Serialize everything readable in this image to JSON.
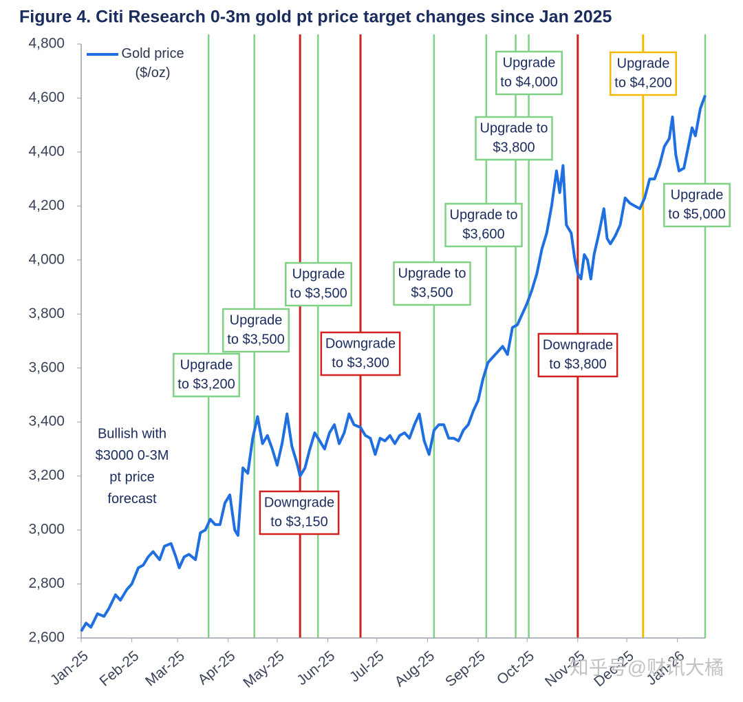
{
  "chart_data": {
    "type": "line",
    "title": "Figure 4. Citi Research 0-3m gold pt price target changes since Jan 2025",
    "x": [
      0,
      3,
      6,
      10,
      14,
      17,
      21,
      24,
      28,
      31,
      35,
      38,
      41,
      44,
      48,
      51,
      55,
      58,
      60,
      63,
      66,
      70,
      73,
      76,
      79,
      82,
      85,
      88,
      91,
      94,
      96,
      99,
      102,
      105,
      108,
      111,
      114,
      117,
      120,
      123,
      126,
      129,
      132,
      134,
      137,
      140,
      143,
      146,
      149,
      152,
      155,
      158,
      161,
      164,
      167,
      171,
      174,
      177,
      180,
      183,
      186,
      189,
      192,
      195,
      198,
      201,
      204,
      207,
      210,
      213,
      216,
      219,
      222,
      225,
      228,
      231,
      234,
      237,
      240,
      243,
      246,
      249,
      252,
      255,
      258,
      261,
      264,
      267,
      270,
      273,
      276,
      279,
      282,
      285,
      288,
      291,
      293,
      295,
      297,
      300,
      302,
      304,
      306,
      308,
      310,
      312,
      314,
      317,
      320,
      322,
      324,
      327,
      330,
      333,
      336,
      339,
      342,
      345,
      348,
      351,
      354,
      357,
      360,
      362,
      364,
      366,
      369,
      372,
      374,
      376,
      379,
      382
    ],
    "series": [
      {
        "name": "Gold price ($/oz)",
        "color": "#1f6fe0",
        "values": [
          2625,
          2655,
          2640,
          2690,
          2680,
          2710,
          2760,
          2740,
          2780,
          2800,
          2860,
          2870,
          2900,
          2920,
          2890,
          2940,
          2950,
          2900,
          2860,
          2900,
          2910,
          2890,
          2990,
          3000,
          3040,
          3020,
          3020,
          3100,
          3130,
          3000,
          2980,
          3230,
          3210,
          3340,
          3420,
          3320,
          3350,
          3300,
          3240,
          3320,
          3430,
          3310,
          3250,
          3200,
          3230,
          3300,
          3360,
          3330,
          3300,
          3360,
          3390,
          3320,
          3360,
          3430,
          3390,
          3380,
          3350,
          3340,
          3280,
          3340,
          3330,
          3350,
          3320,
          3350,
          3360,
          3340,
          3390,
          3430,
          3330,
          3280,
          3370,
          3390,
          3390,
          3340,
          3340,
          3330,
          3370,
          3390,
          3440,
          3480,
          3560,
          3620,
          3640,
          3660,
          3680,
          3650,
          3750,
          3760,
          3800,
          3840,
          3890,
          3950,
          4040,
          4100,
          4200,
          4330,
          4250,
          4350,
          4130,
          4100,
          4010,
          3950,
          3930,
          4020,
          4000,
          3930,
          4020,
          4100,
          4190,
          4080,
          4060,
          4090,
          4130,
          4230,
          4210,
          4200,
          4190,
          4230,
          4300,
          4300,
          4350,
          4420,
          4450,
          4530,
          4390,
          4330,
          4340,
          4430,
          4490,
          4460,
          4560,
          4610
        ]
      }
    ],
    "xlim": [
      0,
      382
    ],
    "ylim": [
      2600,
      4800
    ],
    "xticks": [
      {
        "value": 0,
        "label": "Jan-25"
      },
      {
        "value": 31,
        "label": "Feb-25"
      },
      {
        "value": 59,
        "label": "Mar-25"
      },
      {
        "value": 90,
        "label": "Apr-25"
      },
      {
        "value": 120,
        "label": "May-25"
      },
      {
        "value": 151,
        "label": "Jun-25"
      },
      {
        "value": 181,
        "label": "Jul-25"
      },
      {
        "value": 212,
        "label": "Aug-25"
      },
      {
        "value": 243,
        "label": "Sep-25"
      },
      {
        "value": 273,
        "label": "Oct-25"
      },
      {
        "value": 304,
        "label": "Nov-25"
      },
      {
        "value": 334,
        "label": "Dec-25"
      },
      {
        "value": 365,
        "label": "Jan-26"
      }
    ],
    "yticks": [
      {
        "value": 2600,
        "label": "2,600"
      },
      {
        "value": 2800,
        "label": "2,800"
      },
      {
        "value": 3000,
        "label": "3,000"
      },
      {
        "value": 3200,
        "label": "3,200"
      },
      {
        "value": 3400,
        "label": "3,400"
      },
      {
        "value": 3600,
        "label": "3,600"
      },
      {
        "value": 3800,
        "label": "3,800"
      },
      {
        "value": 4000,
        "label": "4,000"
      },
      {
        "value": 4200,
        "label": "4,200"
      },
      {
        "value": 4400,
        "label": "4,400"
      },
      {
        "value": 4600,
        "label": "4,600"
      },
      {
        "value": 4800,
        "label": "4,800"
      }
    ],
    "events": [
      {
        "x": 78,
        "color": "#7fd283",
        "label": [
          "Upgrade",
          "to $3,200"
        ]
      },
      {
        "x": 106,
        "color": "#7fd283",
        "label": [
          "Upgrade",
          "to $3,500"
        ]
      },
      {
        "x": 134,
        "color": "#d0211f",
        "label": [
          "Downgrade",
          "to $3,150"
        ]
      },
      {
        "x": 145,
        "color": "#7fd283",
        "label": [
          "Upgrade",
          "to $3,500"
        ]
      },
      {
        "x": 171,
        "color": "#d0211f",
        "label": [
          "Downgrade",
          "to $3,300"
        ]
      },
      {
        "x": 216,
        "color": "#7fd283",
        "label": [
          "Upgrade to",
          "$3,500"
        ]
      },
      {
        "x": 248,
        "color": "#7fd283",
        "label": [
          "Upgrade to",
          "$3,600"
        ]
      },
      {
        "x": 266,
        "color": "#7fd283",
        "label": [
          "Upgrade to",
          "$3,800"
        ]
      },
      {
        "x": 274,
        "color": "#7fd283",
        "label": [
          "Upgrade",
          "to $4,000"
        ]
      },
      {
        "x": 304,
        "color": "#d0211f",
        "label": [
          "Downgrade",
          "to $3,800"
        ]
      },
      {
        "x": 344,
        "color": "#f5b800",
        "label": [
          "Upgrade",
          "to $4,200"
        ]
      },
      {
        "x": 382,
        "color": "#7fd283",
        "label": [
          "Upgrade",
          "to $5,000"
        ]
      }
    ],
    "note": [
      "Bullish with",
      "$3000 0-3M",
      "pt price",
      "forecast"
    ],
    "watermark": "知乎号@财讯大橘"
  }
}
